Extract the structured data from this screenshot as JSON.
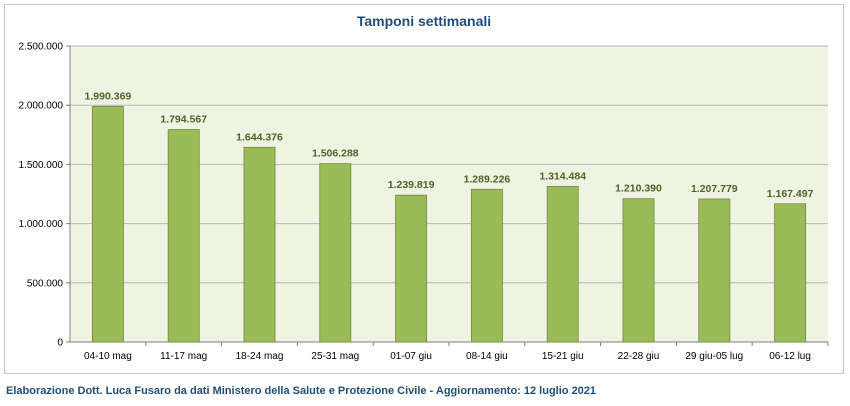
{
  "chart_data": {
    "type": "bar",
    "title": "Tamponi settimanali",
    "xlabel": "",
    "ylabel": "",
    "categories": [
      "04-10 mag",
      "11-17 mag",
      "18-24 mag",
      "25-31 mag",
      "01-07 giu",
      "08-14 giu",
      "15-21 giu",
      "22-28 giu",
      "29 giu-05 lug",
      "06-12 lug"
    ],
    "values": [
      1990369,
      1794567,
      1644376,
      1506288,
      1239819,
      1289226,
      1314484,
      1210390,
      1207779,
      1167497
    ],
    "value_labels": [
      "1.990.369",
      "1.794.567",
      "1.644.376",
      "1.506.288",
      "1.239.819",
      "1.289.226",
      "1.314.484",
      "1.210.390",
      "1.207.779",
      "1.167.497"
    ],
    "ylim": [
      0,
      2500000
    ],
    "yticks": [
      0,
      500000,
      1000000,
      1500000,
      2000000,
      2500000
    ],
    "ytick_labels": [
      "0",
      "500.000",
      "1.000.000",
      "1.500.000",
      "2.000.000",
      "2.500.000"
    ],
    "grid": true,
    "legend": "none",
    "colors": {
      "bar_fill": "#9bbb59",
      "bar_stroke": "#71893f",
      "plot_background": "#eef3e2",
      "gridline": "#b7b7b7",
      "title": "#1f4e79",
      "value_label": "#4f6228",
      "axis_text": "#000000"
    }
  },
  "footer": {
    "note": "Elaborazione Dott. Luca Fusaro da dati Ministero della Salute e Protezione Civile - Aggiornamento: 12 luglio 2021"
  }
}
